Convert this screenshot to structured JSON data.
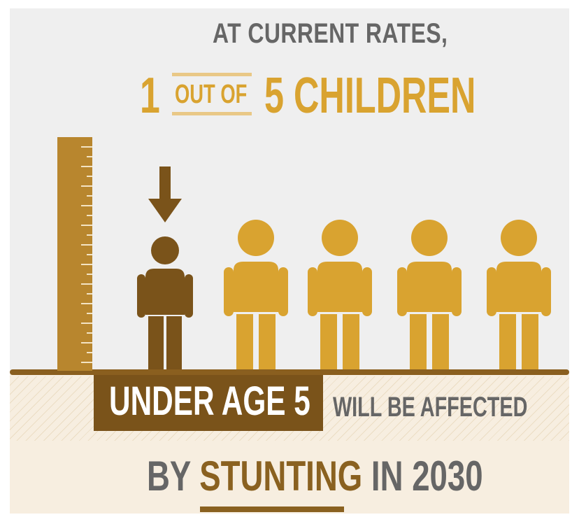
{
  "headline": {
    "line1": "AT CURRENT RATES,",
    "one": "1",
    "out_of": "OUT OF",
    "five_children": "5 CHILDREN"
  },
  "label": {
    "highlight": "UNDER AGE 5",
    "rest": "WILL BE AFFECTED"
  },
  "footer": {
    "by": "BY",
    "stunting": "STUNTING",
    "in_year": "IN 2030"
  },
  "figures": {
    "total": 5,
    "affected": 1
  },
  "icons": [
    "ruler-icon",
    "down-arrow-icon",
    "child-icon"
  ],
  "colors": {
    "background": "#efefef",
    "ground": "#f7eee0",
    "gold": "#d9a330",
    "brown": "#7a531a",
    "gray_text": "#666666"
  }
}
